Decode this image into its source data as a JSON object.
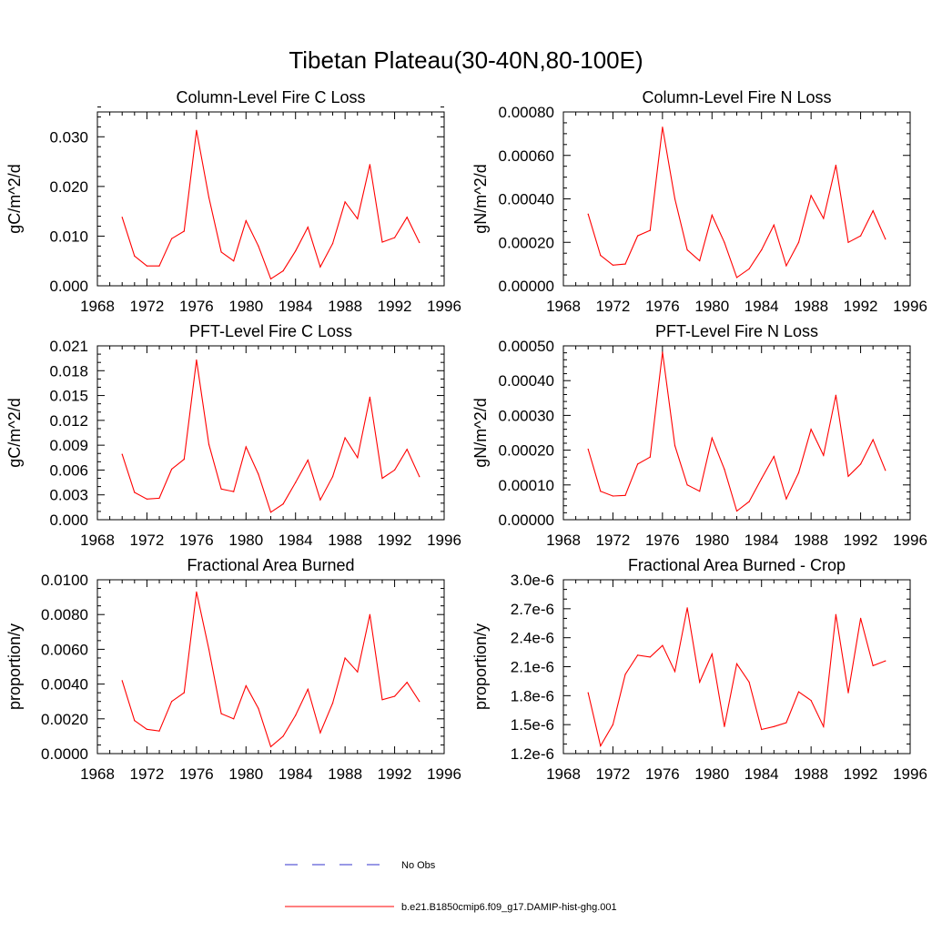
{
  "figure": {
    "title": "Tibetan Plateau(30-40N,80-100E)"
  },
  "legend": {
    "items": [
      {
        "label": "No Obs",
        "color": "#3333cc",
        "style": "dashed"
      },
      {
        "label": "b.e21.B1850cmip6.f09_g17.DAMIP-hist-ghg.001",
        "color": "#ff0000",
        "style": "solid"
      }
    ]
  },
  "chart_data": [
    {
      "type": "line",
      "title": "Column-Level Fire C Loss",
      "xlabel": "",
      "ylabel": "gC/m^2/d",
      "xlim": [
        1968,
        1996
      ],
      "xticks": [
        1968,
        1972,
        1976,
        1980,
        1984,
        1988,
        1992,
        1996
      ],
      "ylim": [
        0,
        0.035
      ],
      "yticks": [
        0,
        0.01,
        0.02,
        0.03
      ],
      "ytick_labels": [
        "0.000",
        "0.010",
        "0.020",
        "0.030"
      ],
      "y_minor_step": 0.002,
      "x": [
        1970,
        1971,
        1972,
        1973,
        1974,
        1975,
        1976,
        1977,
        1978,
        1979,
        1980,
        1981,
        1982,
        1983,
        1984,
        1985,
        1986,
        1987,
        1988,
        1989,
        1990,
        1991,
        1992,
        1993,
        1994
      ],
      "series": [
        {
          "color": "#ff0000",
          "values": [
            0.0138,
            0.006,
            0.004,
            0.004,
            0.0095,
            0.011,
            0.0313,
            0.0178,
            0.0068,
            0.005,
            0.0131,
            0.008,
            0.0014,
            0.003,
            0.007,
            0.0118,
            0.0038,
            0.0085,
            0.0169,
            0.0135,
            0.0244,
            0.0088,
            0.0097,
            0.0138,
            0.0087
          ]
        }
      ]
    },
    {
      "type": "line",
      "title": "Column-Level Fire N Loss",
      "xlabel": "",
      "ylabel": "gN/m^2/d",
      "xlim": [
        1968,
        1996
      ],
      "xticks": [
        1968,
        1972,
        1976,
        1980,
        1984,
        1988,
        1992,
        1996
      ],
      "ylim": [
        0,
        0.0008
      ],
      "yticks": [
        0,
        0.0002,
        0.0004,
        0.0006,
        0.0008
      ],
      "ytick_labels": [
        "0.00000",
        "0.00020",
        "0.00040",
        "0.00060",
        "0.00080"
      ],
      "y_minor_step": 5e-05,
      "x": [
        1970,
        1971,
        1972,
        1973,
        1974,
        1975,
        1976,
        1977,
        1978,
        1979,
        1980,
        1981,
        1982,
        1983,
        1984,
        1985,
        1986,
        1987,
        1988,
        1989,
        1990,
        1991,
        1992,
        1993,
        1994
      ],
      "series": [
        {
          "color": "#ff0000",
          "values": [
            0.00033,
            0.00014,
            9.5e-05,
            0.0001,
            0.00023,
            0.000255,
            0.00073,
            0.0004,
            0.000165,
            0.000115,
            0.000325,
            0.0002,
            3.8e-05,
            7.8e-05,
            0.000165,
            0.00028,
            9.2e-05,
            0.0002,
            0.000415,
            0.00031,
            0.000555,
            0.0002,
            0.00023,
            0.000345,
            0.000215
          ]
        }
      ]
    },
    {
      "type": "line",
      "title": "PFT-Level Fire C Loss",
      "xlabel": "",
      "ylabel": "gC/m^2/d",
      "xlim": [
        1968,
        1996
      ],
      "xticks": [
        1968,
        1972,
        1976,
        1980,
        1984,
        1988,
        1992,
        1996
      ],
      "ylim": [
        0,
        0.021
      ],
      "yticks": [
        0,
        0.003,
        0.006,
        0.009,
        0.012,
        0.015,
        0.018,
        0.021
      ],
      "ytick_labels": [
        "0.000",
        "0.003",
        "0.006",
        "0.009",
        "0.012",
        "0.015",
        "0.018",
        "0.021"
      ],
      "y_minor_step": 0.001,
      "x": [
        1970,
        1971,
        1972,
        1973,
        1974,
        1975,
        1976,
        1977,
        1978,
        1979,
        1980,
        1981,
        1982,
        1983,
        1984,
        1985,
        1986,
        1987,
        1988,
        1989,
        1990,
        1991,
        1992,
        1993,
        1994
      ],
      "series": [
        {
          "color": "#ff0000",
          "values": [
            0.0079,
            0.0033,
            0.0025,
            0.0026,
            0.0061,
            0.0073,
            0.0193,
            0.0091,
            0.0037,
            0.0034,
            0.0088,
            0.0055,
            0.0009,
            0.0019,
            0.0045,
            0.0072,
            0.0024,
            0.0052,
            0.0099,
            0.0075,
            0.0148,
            0.005,
            0.006,
            0.0085,
            0.0052
          ]
        }
      ]
    },
    {
      "type": "line",
      "title": "PFT-Level Fire N Loss",
      "xlabel": "",
      "ylabel": "gN/m^2/d",
      "xlim": [
        1968,
        1996
      ],
      "xticks": [
        1968,
        1972,
        1976,
        1980,
        1984,
        1988,
        1992,
        1996
      ],
      "ylim": [
        0,
        0.0005
      ],
      "yticks": [
        0,
        0.0001,
        0.0002,
        0.0003,
        0.0004,
        0.0005
      ],
      "ytick_labels": [
        "0.00000",
        "0.00010",
        "0.00020",
        "0.00030",
        "0.00040",
        "0.00050"
      ],
      "y_minor_step": 2e-05,
      "x": [
        1970,
        1971,
        1972,
        1973,
        1974,
        1975,
        1976,
        1977,
        1978,
        1979,
        1980,
        1981,
        1982,
        1983,
        1984,
        1985,
        1986,
        1987,
        1988,
        1989,
        1990,
        1991,
        1992,
        1993,
        1994
      ],
      "series": [
        {
          "color": "#ff0000",
          "values": [
            0.000203,
            8.2e-05,
            6.8e-05,
            7e-05,
            0.00016,
            0.00018,
            0.000482,
            0.000213,
            0.0001,
            8.2e-05,
            0.000235,
            0.000145,
            2.5e-05,
            5.2e-05,
            0.000118,
            0.000182,
            6e-05,
            0.000135,
            0.00026,
            0.000185,
            0.000358,
            0.000125,
            0.00016,
            0.00023,
            0.000142
          ]
        }
      ]
    },
    {
      "type": "line",
      "title": "Fractional Area Burned",
      "xlabel": "",
      "ylabel": "proportion/y",
      "xlim": [
        1968,
        1996
      ],
      "xticks": [
        1968,
        1972,
        1976,
        1980,
        1984,
        1988,
        1992,
        1996
      ],
      "ylim": [
        0,
        0.01
      ],
      "yticks": [
        0,
        0.002,
        0.004,
        0.006,
        0.008,
        0.01
      ],
      "ytick_labels": [
        "0.0000",
        "0.0020",
        "0.0040",
        "0.0060",
        "0.0080",
        "0.0100"
      ],
      "y_minor_step": 0.0005,
      "x": [
        1970,
        1971,
        1972,
        1973,
        1974,
        1975,
        1976,
        1977,
        1978,
        1979,
        1980,
        1981,
        1982,
        1983,
        1984,
        1985,
        1986,
        1987,
        1988,
        1989,
        1990,
        1991,
        1992,
        1993,
        1994
      ],
      "series": [
        {
          "color": "#ff0000",
          "values": [
            0.0042,
            0.0019,
            0.0014,
            0.0013,
            0.003,
            0.0035,
            0.0093,
            0.006,
            0.0023,
            0.002,
            0.0039,
            0.0026,
            0.0004,
            0.001,
            0.0022,
            0.0037,
            0.0012,
            0.0029,
            0.0055,
            0.0047,
            0.008,
            0.0031,
            0.0033,
            0.0041,
            0.003
          ]
        }
      ]
    },
    {
      "type": "line",
      "title": "Fractional Area Burned - Crop",
      "xlabel": "",
      "ylabel": "proportion/y",
      "xlim": [
        1968,
        1996
      ],
      "xticks": [
        1968,
        1972,
        1976,
        1980,
        1984,
        1988,
        1992,
        1996
      ],
      "ylim": [
        1.2e-06,
        3e-06
      ],
      "yticks": [
        1.2e-06,
        1.5e-06,
        1.8e-06,
        2.1e-06,
        2.4e-06,
        2.7e-06,
        3e-06
      ],
      "ytick_labels": [
        "1.2e-6",
        "1.5e-6",
        "1.8e-6",
        "2.1e-6",
        "2.4e-6",
        "2.7e-6",
        "3.0e-6"
      ],
      "y_minor_step": 1e-07,
      "x": [
        1970,
        1971,
        1972,
        1973,
        1974,
        1975,
        1976,
        1977,
        1978,
        1979,
        1980,
        1981,
        1982,
        1983,
        1984,
        1985,
        1986,
        1987,
        1988,
        1989,
        1990,
        1991,
        1992,
        1993,
        1994
      ],
      "series": [
        {
          "color": "#ff0000",
          "values": [
            1.83e-06,
            1.28e-06,
            1.5e-06,
            2.02e-06,
            2.22e-06,
            2.2e-06,
            2.32e-06,
            2.05e-06,
            2.71e-06,
            1.94e-06,
            2.23e-06,
            1.48e-06,
            2.13e-06,
            1.94e-06,
            1.45e-06,
            1.48e-06,
            1.52e-06,
            1.84e-06,
            1.75e-06,
            1.48e-06,
            2.64e-06,
            1.83e-06,
            2.6e-06,
            2.11e-06,
            2.16e-06
          ]
        }
      ]
    }
  ]
}
